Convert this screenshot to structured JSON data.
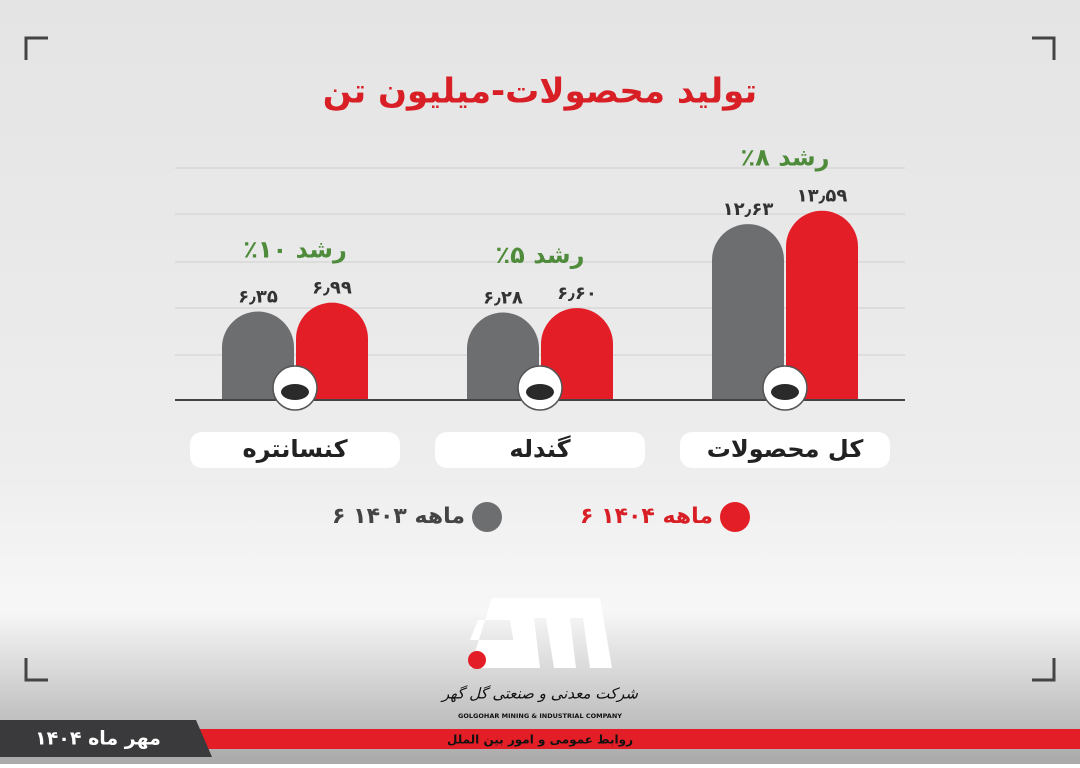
{
  "chart_data": {
    "type": "bar",
    "title": "تولید محصولات-میلیون تن",
    "categories": [
      "کل محصولات",
      "گندله",
      "کنسانتره"
    ],
    "series": [
      {
        "name": "۶ ماهه ۱۴۰۳",
        "color": "#6d6e70",
        "values": [
          12.63,
          6.28,
          6.35
        ],
        "value_labels": [
          "۱۲٫۶۳",
          "۶٫۲۸",
          "۶٫۳۵"
        ]
      },
      {
        "name": "۶ ماهه ۱۴۰۴",
        "color": "#e41e26",
        "values": [
          13.59,
          6.6,
          6.99
        ],
        "value_labels": [
          "۱۳٫۵۹",
          "۶٫۶۰",
          "۶٫۹۹"
        ]
      }
    ],
    "annotations": [
      "٪۸ رشد",
      "٪۵ رشد",
      "٪۱۰ رشد"
    ],
    "ylim": [
      0,
      14
    ],
    "footer": {
      "date": "مهر ماه ۱۴۰۴",
      "company": "شرکت معدنی و صنعتی گل گهر",
      "company_en": "GOLGOHAR MINING & INDUSTRIAL COMPANY",
      "department": "روابط عمومی و امور بین الملل"
    }
  }
}
